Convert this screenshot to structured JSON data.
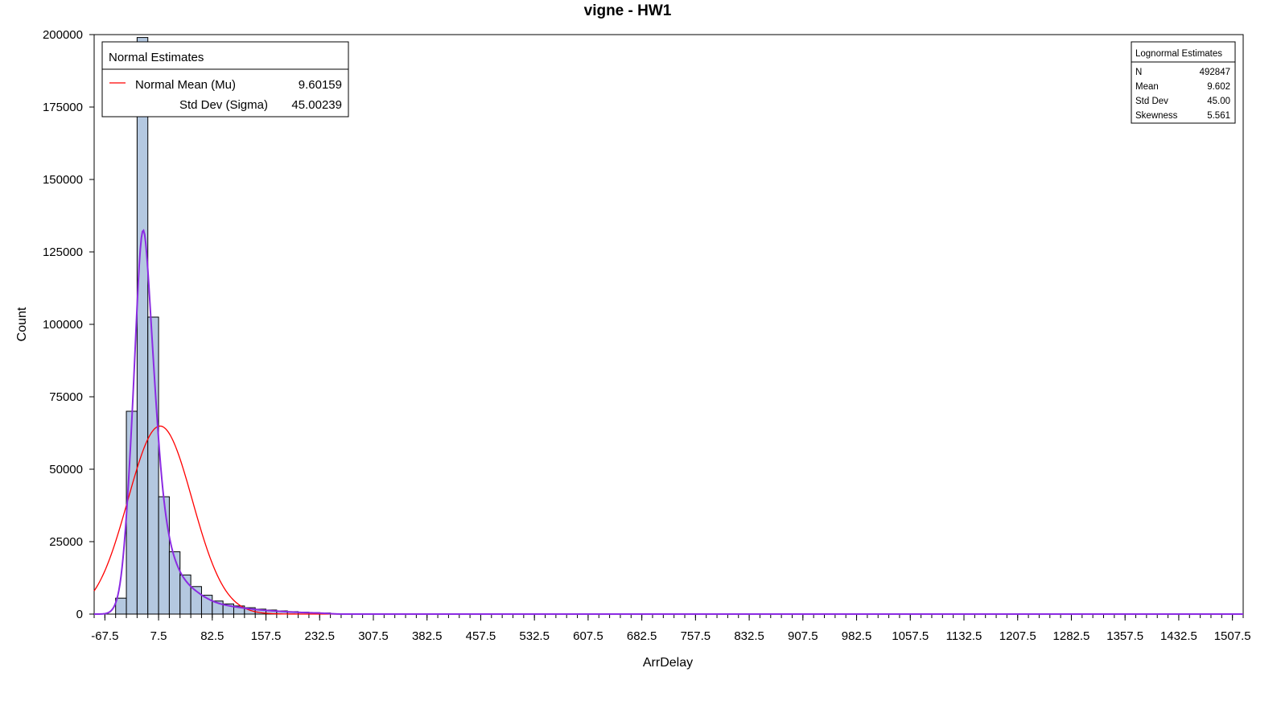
{
  "chart_data": {
    "type": "bar",
    "title": "vigne - HW1",
    "xlabel": "ArrDelay",
    "ylabel": "Count",
    "ylim": [
      0,
      200000
    ],
    "yticks": [
      0,
      25000,
      50000,
      75000,
      100000,
      125000,
      150000,
      175000,
      200000
    ],
    "xlim": [
      -82.5,
      1522.5
    ],
    "xticks": [
      -67.5,
      7.5,
      82.5,
      157.5,
      232.5,
      307.5,
      382.5,
      457.5,
      532.5,
      607.5,
      682.5,
      757.5,
      832.5,
      907.5,
      982.5,
      1057.5,
      1132.5,
      1207.5,
      1282.5,
      1357.5,
      1432.5,
      1507.5
    ],
    "tick_labels": [
      "-67.5",
      "7.5",
      "82.5",
      "157.5",
      "232.5",
      "307.5",
      "382.5",
      "457.5",
      "532.5",
      "607.5",
      "682.5",
      "757.5",
      "832.5",
      "907.5",
      "982.5",
      "1057.5",
      "1132.5",
      "1207.5",
      "1282.5",
      "1357.5",
      "1432.5",
      "1507.5"
    ],
    "bin_width": 15,
    "bin_start": -52.5,
    "bin_counts": [
      5500,
      70000,
      199000,
      102500,
      40500,
      21500,
      13500,
      9500,
      6500,
      4500,
      3500,
      2800,
      2200,
      1700,
      1400,
      1100,
      850,
      650,
      500,
      380
    ],
    "colors": {
      "bar_fill": "#b4c8e0",
      "bar_stroke": "#000000",
      "normal_curve": "#ff0000",
      "kernel_curve": "#8b2be2"
    },
    "normal_curve": {
      "mu": 9.60159,
      "sigma": 45.00239
    },
    "legend_box": {
      "header": "Normal Estimates",
      "series_label": "Normal",
      "rows": [
        {
          "label": "Normal Mean (Mu)",
          "value": "9.60159"
        },
        {
          "label": "Std Dev (Sigma)",
          "value": "45.00239"
        }
      ],
      "placement": "top-left"
    },
    "inset_table": {
      "header": "Lognormal Estimates",
      "rows": [
        {
          "label": "N",
          "value": "492847"
        },
        {
          "label": "Mean",
          "value": "9.602"
        },
        {
          "label": "Std Dev",
          "value": "45.00"
        },
        {
          "label": "Skewness",
          "value": "5.561"
        }
      ],
      "placement": "top-right"
    }
  }
}
